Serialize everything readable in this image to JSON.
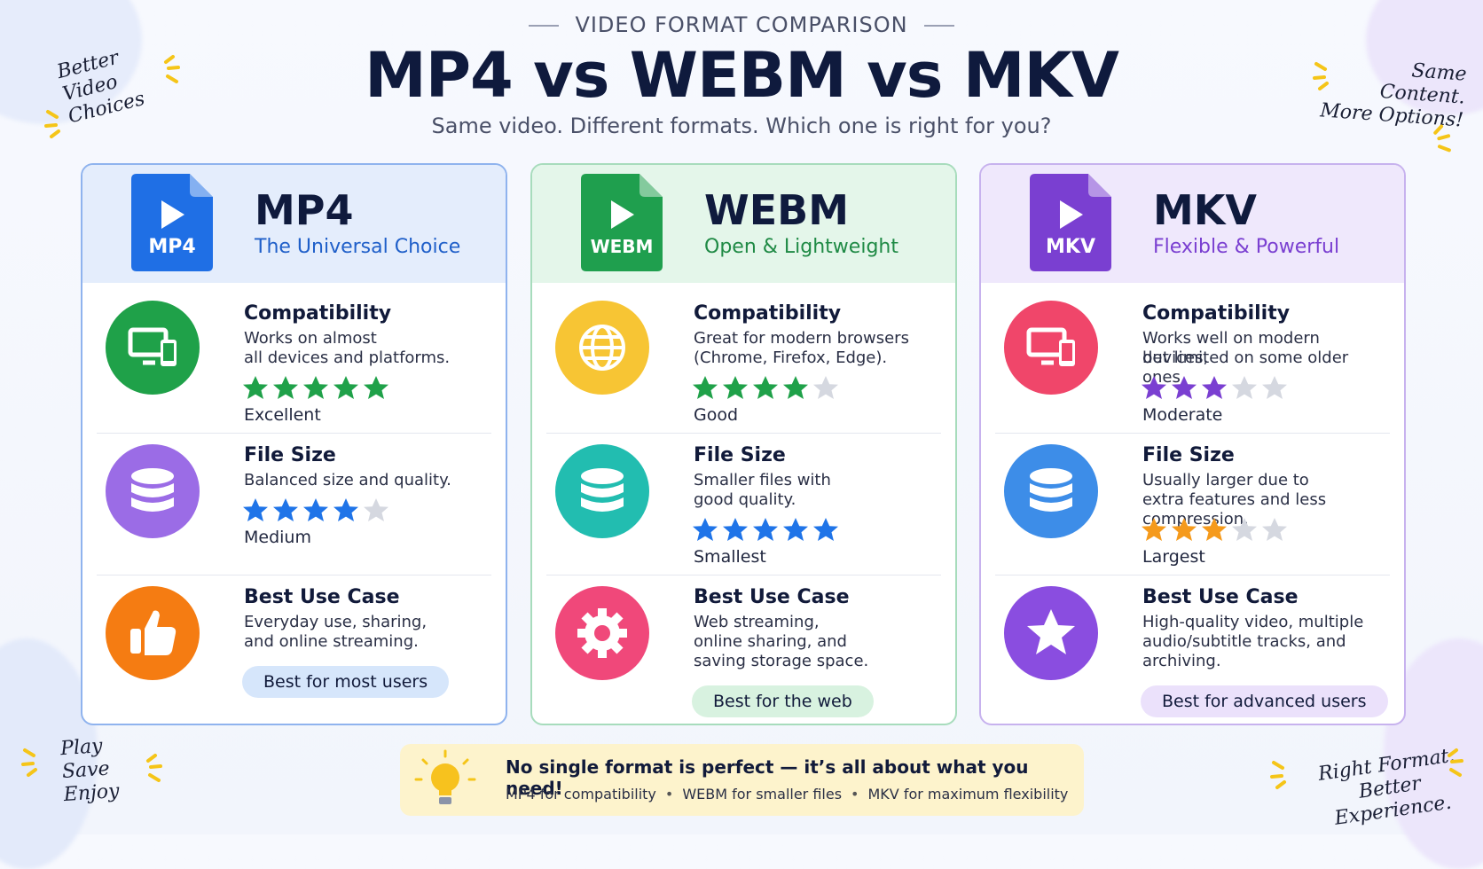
{
  "header": {
    "kicker": "VIDEO FORMAT COMPARISON",
    "title": "MP4 vs WEBM vs MKV",
    "subtitle": "Same video. Different formats. Which one is right for you?"
  },
  "corner_notes": {
    "top_left": [
      "Better",
      "Video",
      "Choices"
    ],
    "top_right": [
      "Same",
      "Content.",
      "More Options!"
    ],
    "bottom_left": [
      "Play",
      "Save",
      "Enjoy"
    ],
    "bottom_right": [
      "Right Format.",
      "Better Experience."
    ]
  },
  "rating_scale": 5,
  "cards": [
    {
      "icon_label": "MP4",
      "name": "MP4",
      "tagline": "The Universal Choice",
      "rows": [
        {
          "title": "Compatibility",
          "text": [
            "Works on almost",
            "all devices and platforms."
          ],
          "rating": 5,
          "rating_label": "Excellent"
        },
        {
          "title": "File Size",
          "text": [
            "Balanced size and quality."
          ],
          "rating": 4,
          "rating_label": "Medium"
        },
        {
          "title": "Best Use Case",
          "text": [
            "Everyday use, sharing,",
            "and online streaming."
          ]
        }
      ],
      "badge": "Best for most users"
    },
    {
      "icon_label": "WEBM",
      "name": "WEBM",
      "tagline": "Open & Lightweight",
      "rows": [
        {
          "title": "Compatibility",
          "text": [
            "Great for modern browsers",
            "(Chrome, Firefox, Edge)."
          ],
          "rating": 4,
          "rating_label": "Good"
        },
        {
          "title": "File Size",
          "text": [
            "Smaller files with",
            "good quality."
          ],
          "rating": 5,
          "rating_label": "Smallest"
        },
        {
          "title": "Best Use Case",
          "text": [
            "Web streaming,",
            "online sharing, and",
            "saving storage space."
          ]
        }
      ],
      "badge": "Best for the web"
    },
    {
      "icon_label": "MKV",
      "name": "MKV",
      "tagline": "Flexible & Powerful",
      "rows": [
        {
          "title": "Compatibility",
          "text": [
            "Works well on modern devices,",
            "but limited on some older ones."
          ],
          "rating": 3,
          "rating_label": "Moderate"
        },
        {
          "title": "File Size",
          "text": [
            "Usually larger due to",
            "extra features and less compression."
          ],
          "rating": 3,
          "rating_label": "Largest"
        },
        {
          "title": "Best Use Case",
          "text": [
            "High-quality video, multiple",
            "audio/subtitle tracks, and",
            "archiving."
          ]
        }
      ],
      "badge": "Best for advanced users"
    }
  ],
  "footer": {
    "headline": "No single format is perfect — it’s all about what you need!",
    "items": [
      "MP4 for compatibility",
      "WEBM for smaller files",
      "MKV for maximum flexibility"
    ]
  }
}
